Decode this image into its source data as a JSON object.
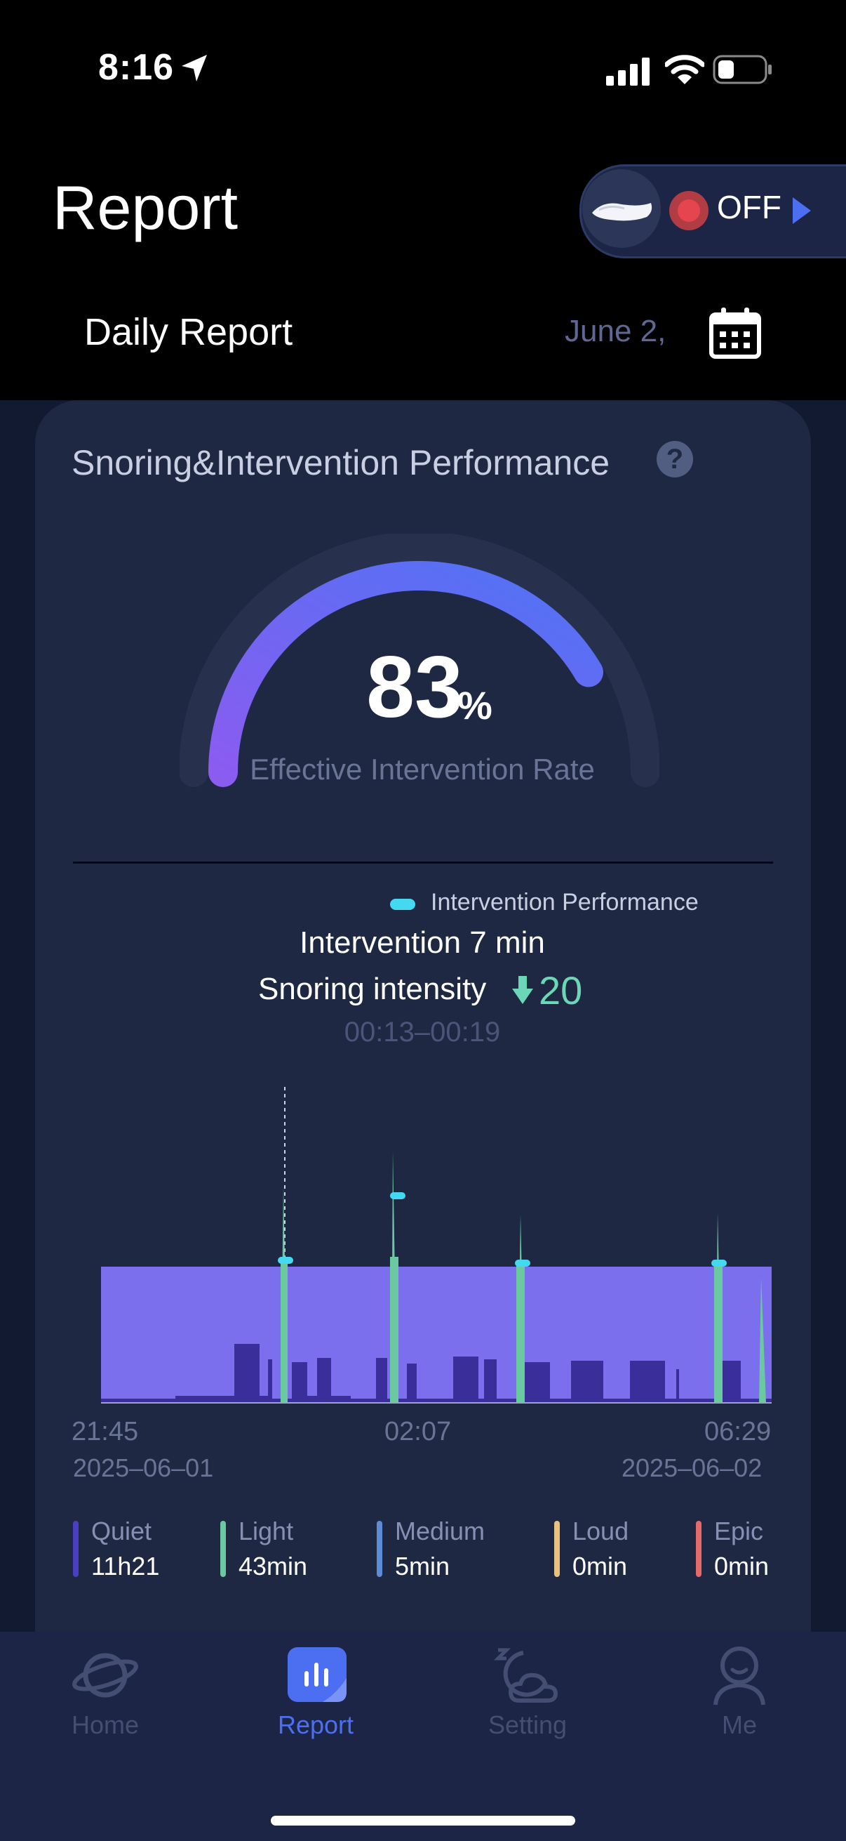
{
  "status_bar": {
    "time": "8:16"
  },
  "header": {
    "title": "Report"
  },
  "device_toggle": {
    "state_label": "OFF"
  },
  "report_type": {
    "label": "Daily Report",
    "date": "June 2,"
  },
  "card": {
    "title": "Snoring&Intervention Performance",
    "help_glyph": "?",
    "gauge": {
      "value": "83",
      "unit": "%",
      "label": "Effective Intervention Rate",
      "fraction": 0.83
    },
    "legend": {
      "label": "Intervention Performance",
      "color": "#44d9f0"
    },
    "tooltip": {
      "intervention": "Intervention 7 min",
      "intensity_label": "Snoring intensity",
      "intensity_value": "20",
      "time_range": "00:13–00:19"
    },
    "x_axis": {
      "start_time": "21:45",
      "mid_time": "02:07",
      "end_time": "06:29",
      "start_date": "2025–06–01",
      "end_date": "2025–06–02"
    },
    "stats": [
      {
        "name": "Quiet",
        "value": "11h21",
        "color": "#4a3ec2"
      },
      {
        "name": "Light",
        "value": "43min",
        "color": "#6bc9a2"
      },
      {
        "name": "Medium",
        "value": "5min",
        "color": "#5f8bd6"
      },
      {
        "name": "Loud",
        "value": "0min",
        "color": "#e8c17e"
      },
      {
        "name": "Epic",
        "value": "0min",
        "color": "#e66a6a"
      }
    ]
  },
  "tabs": [
    {
      "label": "Home",
      "active": false
    },
    {
      "label": "Report",
      "active": true
    },
    {
      "label": "Setting",
      "active": false
    },
    {
      "label": "Me",
      "active": false
    }
  ],
  "colors": {
    "accent": "#4c6ff2",
    "tab_inactive": "#444e73",
    "area_fill": "#7c6fee",
    "snore_fill": "#3a2f9a"
  }
}
